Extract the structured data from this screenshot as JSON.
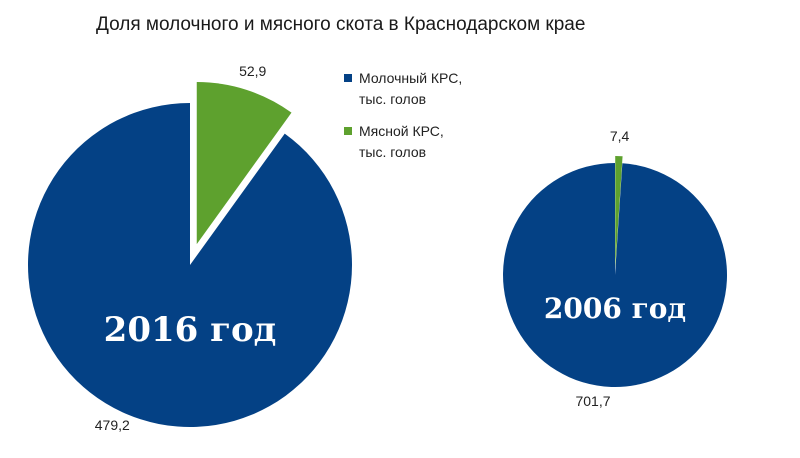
{
  "title": "Доля молочного и мясного скота в Краснодарском крае",
  "colors": {
    "dairy": "#044185",
    "meat": "#5ea12e"
  },
  "legend": {
    "items": [
      {
        "line1": "Молочный КРС,",
        "line2": "тыс. голов",
        "color": "#044185"
      },
      {
        "line1": "Мясной КРС,",
        "line2": "тыс. голов",
        "color": "#5ea12e"
      }
    ]
  },
  "chart_data": [
    {
      "type": "pie",
      "year_label": "2016 год",
      "categories": [
        "Молочный КРС, тыс. голов",
        "Мясной КРС, тыс. голов"
      ],
      "values": [
        479.2,
        52.9
      ],
      "value_labels": [
        "479,2",
        "52,9"
      ],
      "exploded": "Мясной КРС, тыс. голов"
    },
    {
      "type": "pie",
      "year_label": "2006 год",
      "categories": [
        "Молочный КРС, тыс. голов",
        "Мясной КРС, тыс. голов"
      ],
      "values": [
        701.7,
        7.4
      ],
      "value_labels": [
        "701,7",
        "7,4"
      ],
      "exploded": "Мясной КРС, тыс. голов"
    }
  ]
}
